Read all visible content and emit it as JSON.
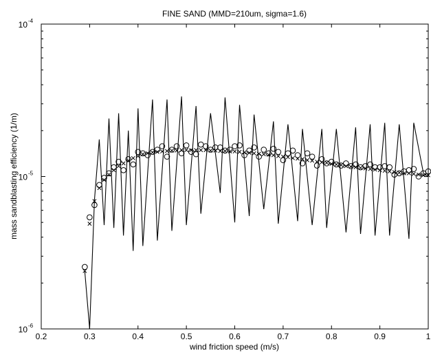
{
  "chart_data": {
    "type": "line",
    "title": "FINE SAND (MMD=210um, sigma=1.6)",
    "xlabel": "wind friction speed (m/s)",
    "ylabel": "mass sandblasting efficiency (1/m)",
    "xlim": [
      0.2,
      1.0
    ],
    "ylim": [
      1e-06,
      0.0001
    ],
    "yscale": "log",
    "grid": false,
    "x_ticks": [
      0.2,
      0.3,
      0.4,
      0.5,
      0.6,
      0.7,
      0.8,
      0.9,
      1.0
    ],
    "x_tick_labels": [
      "0.2",
      "0.3",
      "0.4",
      "0.5",
      "0.6",
      "0.7",
      "0.8",
      "0.9",
      "1"
    ],
    "y_ticks": [
      1e-06,
      1e-05,
      0.0001
    ],
    "y_tick_bases": [
      "10",
      "10",
      "10"
    ],
    "y_tick_exponents": [
      "-6",
      "-5",
      "-4"
    ],
    "series": [
      {
        "style": "line",
        "x": [
          0.29,
          0.3,
          0.31,
          0.32,
          0.33,
          0.34,
          0.35,
          0.36,
          0.37,
          0.38,
          0.39,
          0.4,
          0.41,
          0.43,
          0.44,
          0.46,
          0.47,
          0.49,
          0.5,
          0.52,
          0.53,
          0.55,
          0.57,
          0.58,
          0.6,
          0.61,
          0.63,
          0.64,
          0.66,
          0.68,
          0.69,
          0.71,
          0.73,
          0.74,
          0.76,
          0.78,
          0.79,
          0.81,
          0.83,
          0.85,
          0.86,
          0.88,
          0.89,
          0.91,
          0.92,
          0.94,
          0.96,
          0.97,
          0.99,
          1.0
        ],
        "y": [
          2.4e-06,
          1e-06,
          7e-06,
          1.75e-05,
          4.8e-06,
          2.4e-05,
          4.6e-06,
          2.6e-05,
          4.1e-06,
          2e-05,
          3.25e-06,
          2.8e-05,
          3.5e-06,
          3.2e-05,
          3.8e-06,
          3.2e-05,
          4.4e-06,
          3.35e-05,
          4.8e-06,
          2.9e-05,
          5.7e-06,
          2.6e-05,
          7.8e-06,
          3.3e-05,
          5e-06,
          2.95e-05,
          5.5e-06,
          2.55e-05,
          6.1e-06,
          2.3e-05,
          4.9e-06,
          2.2e-05,
          5.1e-06,
          2.05e-05,
          4.8e-06,
          2.05e-05,
          4.6e-06,
          2.05e-05,
          4.3e-06,
          2.1e-05,
          4.2e-06,
          2.2e-05,
          4.1e-06,
          2.25e-05,
          4.1e-06,
          2.2e-05,
          3.9e-06,
          2.25e-05,
          1.05e-05,
          1e-05
        ]
      },
      {
        "style": "circle",
        "x": [
          0.29,
          0.3,
          0.31,
          0.32,
          0.33,
          0.34,
          0.35,
          0.36,
          0.37,
          0.38,
          0.39,
          0.4,
          0.41,
          0.42,
          0.43,
          0.44,
          0.45,
          0.46,
          0.47,
          0.48,
          0.49,
          0.5,
          0.51,
          0.52,
          0.53,
          0.54,
          0.55,
          0.56,
          0.57,
          0.58,
          0.59,
          0.6,
          0.61,
          0.62,
          0.63,
          0.64,
          0.65,
          0.66,
          0.67,
          0.68,
          0.69,
          0.7,
          0.71,
          0.72,
          0.73,
          0.74,
          0.75,
          0.76,
          0.77,
          0.78,
          0.79,
          0.8,
          0.81,
          0.82,
          0.83,
          0.84,
          0.85,
          0.86,
          0.87,
          0.88,
          0.89,
          0.9,
          0.91,
          0.92,
          0.93,
          0.94,
          0.95,
          0.96,
          0.97,
          0.98,
          0.99,
          1.0
        ],
        "y": [
          2.55e-06,
          5.4e-06,
          6.5e-06,
          8.8e-06,
          9.8e-06,
          1.05e-05,
          1.15e-05,
          1.25e-05,
          1.1e-05,
          1.3e-05,
          1.2e-05,
          1.45e-05,
          1.42e-05,
          1.38e-05,
          1.45e-05,
          1.5e-05,
          1.58e-05,
          1.35e-05,
          1.5e-05,
          1.58e-05,
          1.42e-05,
          1.6e-05,
          1.45e-05,
          1.4e-05,
          1.62e-05,
          1.58e-05,
          1.5e-05,
          1.55e-05,
          1.55e-05,
          1.48e-05,
          1.5e-05,
          1.58e-05,
          1.6e-05,
          1.38e-05,
          1.48e-05,
          1.55e-05,
          1.35e-05,
          1.5e-05,
          1.42e-05,
          1.52e-05,
          1.45e-05,
          1.28e-05,
          1.42e-05,
          1.48e-05,
          1.38e-05,
          1.22e-05,
          1.42e-05,
          1.35e-05,
          1.18e-05,
          1.3e-05,
          1.22e-05,
          1.25e-05,
          1.2e-05,
          1.18e-05,
          1.22e-05,
          1.17e-05,
          1.2e-05,
          1.15e-05,
          1.17e-05,
          1.2e-05,
          1.15e-05,
          1.15e-05,
          1.17e-05,
          1.15e-05,
          1.03e-05,
          1.05e-05,
          1.08e-05,
          1.1e-05,
          1.12e-05,
          1e-05,
          1.05e-05,
          1.08e-05
        ]
      },
      {
        "style": "cross",
        "x": [
          0.29,
          0.3,
          0.31,
          0.32,
          0.33,
          0.34,
          0.35,
          0.36,
          0.37,
          0.38,
          0.39,
          0.4,
          0.41,
          0.42,
          0.43,
          0.44,
          0.45,
          0.46,
          0.47,
          0.48,
          0.49,
          0.5,
          0.51,
          0.52,
          0.53,
          0.54,
          0.55,
          0.56,
          0.57,
          0.58,
          0.59,
          0.6,
          0.61,
          0.62,
          0.63,
          0.64,
          0.65,
          0.66,
          0.67,
          0.68,
          0.69,
          0.7,
          0.71,
          0.72,
          0.73,
          0.74,
          0.75,
          0.76,
          0.77,
          0.78,
          0.79,
          0.8,
          0.81,
          0.82,
          0.83,
          0.84,
          0.85,
          0.86,
          0.87,
          0.88,
          0.89,
          0.9,
          0.91,
          0.92,
          0.93,
          0.94,
          0.95,
          0.96,
          0.97,
          0.98,
          0.99,
          1.0
        ],
        "y": [
          2.4e-06,
          4.9e-06,
          6.9e-06,
          8.4e-06,
          9.5e-06,
          1.03e-05,
          1.1e-05,
          1.17e-05,
          1.22e-05,
          1.27e-05,
          1.32e-05,
          1.36e-05,
          1.4e-05,
          1.42e-05,
          1.44e-05,
          1.45e-05,
          1.46e-05,
          1.47e-05,
          1.48e-05,
          1.48e-05,
          1.49e-05,
          1.49e-05,
          1.49e-05,
          1.49e-05,
          1.49e-05,
          1.49e-05,
          1.48e-05,
          1.48e-05,
          1.47e-05,
          1.47e-05,
          1.46e-05,
          1.46e-05,
          1.45e-05,
          1.44e-05,
          1.43e-05,
          1.42e-05,
          1.41e-05,
          1.4e-05,
          1.39e-05,
          1.38e-05,
          1.36e-05,
          1.35e-05,
          1.34e-05,
          1.32e-05,
          1.31e-05,
          1.3e-05,
          1.28e-05,
          1.27e-05,
          1.25e-05,
          1.24e-05,
          1.23e-05,
          1.21e-05,
          1.2e-05,
          1.19e-05,
          1.17e-05,
          1.16e-05,
          1.15e-05,
          1.14e-05,
          1.13e-05,
          1.12e-05,
          1.11e-05,
          1.1e-05,
          1.09e-05,
          1.08e-05,
          1.07e-05,
          1.06e-05,
          1.05e-05,
          1.05e-05,
          1.04e-05,
          1.03e-05,
          1.02e-05,
          1.02e-05
        ]
      }
    ]
  }
}
